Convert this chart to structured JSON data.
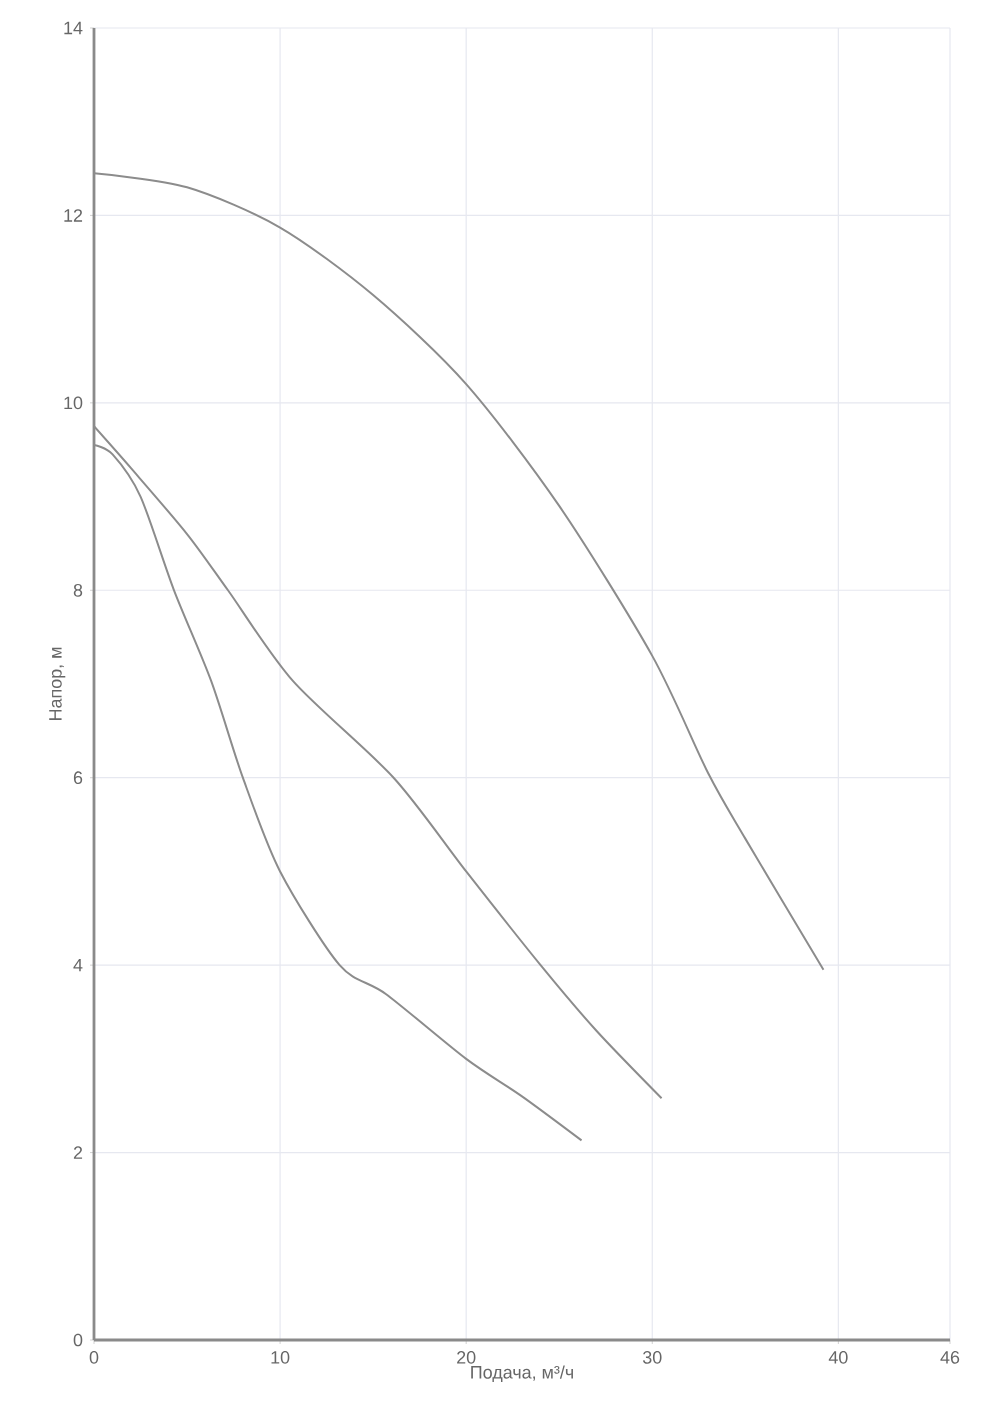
{
  "chart_data": {
    "type": "line",
    "xlabel": "Подача, м³/ч",
    "ylabel": "Напор, м",
    "xlim": [
      0,
      46
    ],
    "ylim": [
      0,
      14
    ],
    "xticks": [
      0,
      10,
      20,
      30,
      40,
      46
    ],
    "yticks": [
      0,
      2,
      4,
      6,
      8,
      10,
      12,
      14
    ],
    "grid": true,
    "series": [
      {
        "color": "#8c8c8c",
        "x": [
          0,
          5,
          10,
          15,
          20,
          25,
          30,
          33,
          35,
          39.2
        ],
        "values": [
          12.45,
          12.3,
          11.87,
          11.15,
          10.2,
          8.9,
          7.3,
          6.05,
          5.35,
          3.95
        ]
      },
      {
        "color": "#8c8c8c",
        "x": [
          0,
          2,
          5,
          7.2,
          10.7,
          16.1,
          20,
          24,
          27,
          30.5
        ],
        "values": [
          9.75,
          9.3,
          8.6,
          8.0,
          7.03,
          6.0,
          5.0,
          4.0,
          3.3,
          2.58
        ]
      },
      {
        "color": "#8c8c8c",
        "x": [
          0,
          1,
          2.5,
          4.3,
          6.3,
          8,
          10,
          13.2,
          15.7,
          20,
          23,
          26.2
        ],
        "values": [
          9.55,
          9.45,
          9.0,
          8.0,
          7.03,
          6.0,
          5.0,
          4.0,
          3.69,
          3.0,
          2.6,
          2.13
        ]
      }
    ]
  }
}
